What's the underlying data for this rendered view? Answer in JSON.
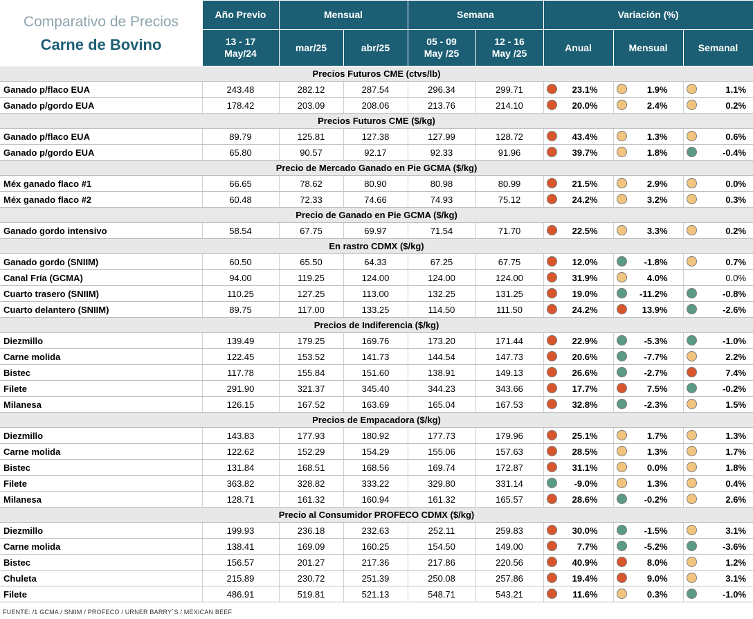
{
  "title": {
    "line1": "Comparativo de Precios",
    "line2": "Carne de Bovino"
  },
  "header": {
    "groups": [
      "Año Previo",
      "Mensual",
      "Semana",
      "Variación (%)"
    ],
    "cols": [
      "13 - 17 May/24",
      "mar/25",
      "abr/25",
      "05 - 09 May /25",
      "12 - 16 May /25",
      "Anual",
      "Mensual",
      "Semanal"
    ]
  },
  "colors": {
    "red": "#d9552c",
    "yellow": "#f2c57f",
    "green": "#5a9a86",
    "header_bg": "#1c5f74"
  },
  "sections": [
    {
      "title": "Precios Futuros CME (ctvs/lb)",
      "rows": [
        {
          "name": "Ganado p/flaco EUA",
          "v": [
            "243.48",
            "282.12",
            "287.54",
            "296.34",
            "299.71"
          ],
          "var": [
            [
              "23.1%",
              "red"
            ],
            [
              "1.9%",
              "yellow"
            ],
            [
              "1.1%",
              "yellow"
            ]
          ]
        },
        {
          "name": "Ganado p/gordo EUA",
          "v": [
            "178.42",
            "203.09",
            "208.06",
            "213.76",
            "214.10"
          ],
          "var": [
            [
              "20.0%",
              "red"
            ],
            [
              "2.4%",
              "yellow"
            ],
            [
              "0.2%",
              "yellow"
            ]
          ]
        }
      ]
    },
    {
      "title": "Precios Futuros CME ($/kg)",
      "rows": [
        {
          "name": "Ganado p/flaco EUA",
          "v": [
            "89.79",
            "125.81",
            "127.38",
            "127.99",
            "128.72"
          ],
          "var": [
            [
              "43.4%",
              "red"
            ],
            [
              "1.3%",
              "yellow"
            ],
            [
              "0.6%",
              "yellow"
            ]
          ]
        },
        {
          "name": "Ganado p/gordo EUA",
          "v": [
            "65.80",
            "90.57",
            "92.17",
            "92.33",
            "91.96"
          ],
          "var": [
            [
              "39.7%",
              "red"
            ],
            [
              "1.8%",
              "yellow"
            ],
            [
              "-0.4%",
              "green"
            ]
          ]
        }
      ]
    },
    {
      "title": "Precio de Mercado Ganado en Pie GCMA ($/kg)",
      "rows": [
        {
          "name": "Méx ganado flaco #1",
          "v": [
            "66.65",
            "78.62",
            "80.90",
            "80.98",
            "80.99"
          ],
          "var": [
            [
              "21.5%",
              "red"
            ],
            [
              "2.9%",
              "yellow"
            ],
            [
              "0.0%",
              "yellow"
            ]
          ]
        },
        {
          "name": "Méx ganado flaco #2",
          "v": [
            "60.48",
            "72.33",
            "74.66",
            "74.93",
            "75.12"
          ],
          "var": [
            [
              "24.2%",
              "red"
            ],
            [
              "3.2%",
              "yellow"
            ],
            [
              "0.3%",
              "yellow"
            ]
          ]
        }
      ]
    },
    {
      "title": "Precio de Ganado en Pie GCMA ($/kg)",
      "rows": [
        {
          "name": "Ganado gordo intensivo",
          "v": [
            "58.54",
            "67.75",
            "69.97",
            "71.54",
            "71.70"
          ],
          "var": [
            [
              "22.5%",
              "red"
            ],
            [
              "3.3%",
              "yellow"
            ],
            [
              "0.2%",
              "yellow"
            ]
          ]
        }
      ]
    },
    {
      "title": "En rastro CDMX ($/kg)",
      "rows": [
        {
          "name": "Ganado gordo (SNIIM)",
          "v": [
            "60.50",
            "65.50",
            "64.33",
            "67.25",
            "67.75"
          ],
          "var": [
            [
              "12.0%",
              "red"
            ],
            [
              "-1.8%",
              "green"
            ],
            [
              "0.7%",
              "yellow"
            ]
          ]
        },
        {
          "name": "Canal Fría (GCMA)",
          "v": [
            "94.00",
            "119.25",
            "124.00",
            "124.00",
            "124.00"
          ],
          "var": [
            [
              "31.9%",
              "red"
            ],
            [
              "4.0%",
              "yellow"
            ],
            [
              "0.0%",
              ""
            ]
          ]
        },
        {
          "name": "Cuarto trasero (SNIIM)",
          "v": [
            "110.25",
            "127.25",
            "113.00",
            "132.25",
            "131.25"
          ],
          "var": [
            [
              "19.0%",
              "red"
            ],
            [
              "-11.2%",
              "green"
            ],
            [
              "-0.8%",
              "green"
            ]
          ]
        },
        {
          "name": "Cuarto delantero (SNIIM)",
          "v": [
            "89.75",
            "117.00",
            "133.25",
            "114.50",
            "111.50"
          ],
          "var": [
            [
              "24.2%",
              "red"
            ],
            [
              "13.9%",
              "red"
            ],
            [
              "-2.6%",
              "green"
            ]
          ]
        }
      ]
    },
    {
      "title": "Precios de Indiferencia ($/kg)",
      "rows": [
        {
          "name": "Diezmillo",
          "v": [
            "139.49",
            "179.25",
            "169.76",
            "173.20",
            "171.44"
          ],
          "var": [
            [
              "22.9%",
              "red"
            ],
            [
              "-5.3%",
              "green"
            ],
            [
              "-1.0%",
              "green"
            ]
          ]
        },
        {
          "name": "Carne molida",
          "v": [
            "122.45",
            "153.52",
            "141.73",
            "144.54",
            "147.73"
          ],
          "var": [
            [
              "20.6%",
              "red"
            ],
            [
              "-7.7%",
              "green"
            ],
            [
              "2.2%",
              "yellow"
            ]
          ]
        },
        {
          "name": "Bistec",
          "v": [
            "117.78",
            "155.84",
            "151.60",
            "138.91",
            "149.13"
          ],
          "var": [
            [
              "26.6%",
              "red"
            ],
            [
              "-2.7%",
              "green"
            ],
            [
              "7.4%",
              "red"
            ]
          ]
        },
        {
          "name": "Filete",
          "v": [
            "291.90",
            "321.37",
            "345.40",
            "344.23",
            "343.66"
          ],
          "var": [
            [
              "17.7%",
              "red"
            ],
            [
              "7.5%",
              "red"
            ],
            [
              "-0.2%",
              "green"
            ]
          ]
        },
        {
          "name": "Milanesa",
          "v": [
            "126.15",
            "167.52",
            "163.69",
            "165.04",
            "167.53"
          ],
          "var": [
            [
              "32.8%",
              "red"
            ],
            [
              "-2.3%",
              "green"
            ],
            [
              "1.5%",
              "yellow"
            ]
          ]
        }
      ]
    },
    {
      "title": "Precios de Empacadora ($/kg)",
      "rows": [
        {
          "name": "Diezmillo",
          "v": [
            "143.83",
            "177.93",
            "180.92",
            "177.73",
            "179.96"
          ],
          "var": [
            [
              "25.1%",
              "red"
            ],
            [
              "1.7%",
              "yellow"
            ],
            [
              "1.3%",
              "yellow"
            ]
          ]
        },
        {
          "name": "Carne molida",
          "v": [
            "122.62",
            "152.29",
            "154.29",
            "155.06",
            "157.63"
          ],
          "var": [
            [
              "28.5%",
              "red"
            ],
            [
              "1.3%",
              "yellow"
            ],
            [
              "1.7%",
              "yellow"
            ]
          ]
        },
        {
          "name": "Bistec",
          "v": [
            "131.84",
            "168.51",
            "168.56",
            "169.74",
            "172.87"
          ],
          "var": [
            [
              "31.1%",
              "red"
            ],
            [
              "0.0%",
              "yellow"
            ],
            [
              "1.8%",
              "yellow"
            ]
          ]
        },
        {
          "name": "Filete",
          "v": [
            "363.82",
            "328.82",
            "333.22",
            "329.80",
            "331.14"
          ],
          "var": [
            [
              "-9.0%",
              "green"
            ],
            [
              "1.3%",
              "yellow"
            ],
            [
              "0.4%",
              "yellow"
            ]
          ]
        },
        {
          "name": "Milanesa",
          "v": [
            "128.71",
            "161.32",
            "160.94",
            "161.32",
            "165.57"
          ],
          "var": [
            [
              "28.6%",
              "red"
            ],
            [
              "-0.2%",
              "green"
            ],
            [
              "2.6%",
              "yellow"
            ]
          ]
        }
      ]
    },
    {
      "title": "Precio al Consumidor PROFECO CDMX  ($/kg)",
      "rows": [
        {
          "name": "Diezmillo",
          "v": [
            "199.93",
            "236.18",
            "232.63",
            "252.11",
            "259.83"
          ],
          "var": [
            [
              "30.0%",
              "red"
            ],
            [
              "-1.5%",
              "green"
            ],
            [
              "3.1%",
              "yellow"
            ]
          ]
        },
        {
          "name": "Carne molida",
          "v": [
            "138.41",
            "169.09",
            "160.25",
            "154.50",
            "149.00"
          ],
          "var": [
            [
              "7.7%",
              "red"
            ],
            [
              "-5.2%",
              "green"
            ],
            [
              "-3.6%",
              "green"
            ]
          ]
        },
        {
          "name": "Bistec",
          "v": [
            "156.57",
            "201.27",
            "217.36",
            "217.86",
            "220.56"
          ],
          "var": [
            [
              "40.9%",
              "red"
            ],
            [
              "8.0%",
              "red"
            ],
            [
              "1.2%",
              "yellow"
            ]
          ]
        },
        {
          "name": "Chuleta",
          "v": [
            "215.89",
            "230.72",
            "251.39",
            "250.08",
            "257.86"
          ],
          "var": [
            [
              "19.4%",
              "red"
            ],
            [
              "9.0%",
              "red"
            ],
            [
              "3.1%",
              "yellow"
            ]
          ]
        },
        {
          "name": "Filete",
          "v": [
            "486.91",
            "519.81",
            "521.13",
            "548.71",
            "543.21"
          ],
          "var": [
            [
              "11.6%",
              "red"
            ],
            [
              "0.3%",
              "yellow"
            ],
            [
              "-1.0%",
              "green"
            ]
          ]
        }
      ]
    }
  ],
  "footer": "FUENTE: /1 GCMA / SNIIM / PROFECO / URNER BARRY´S / MEXICAN BEEF"
}
